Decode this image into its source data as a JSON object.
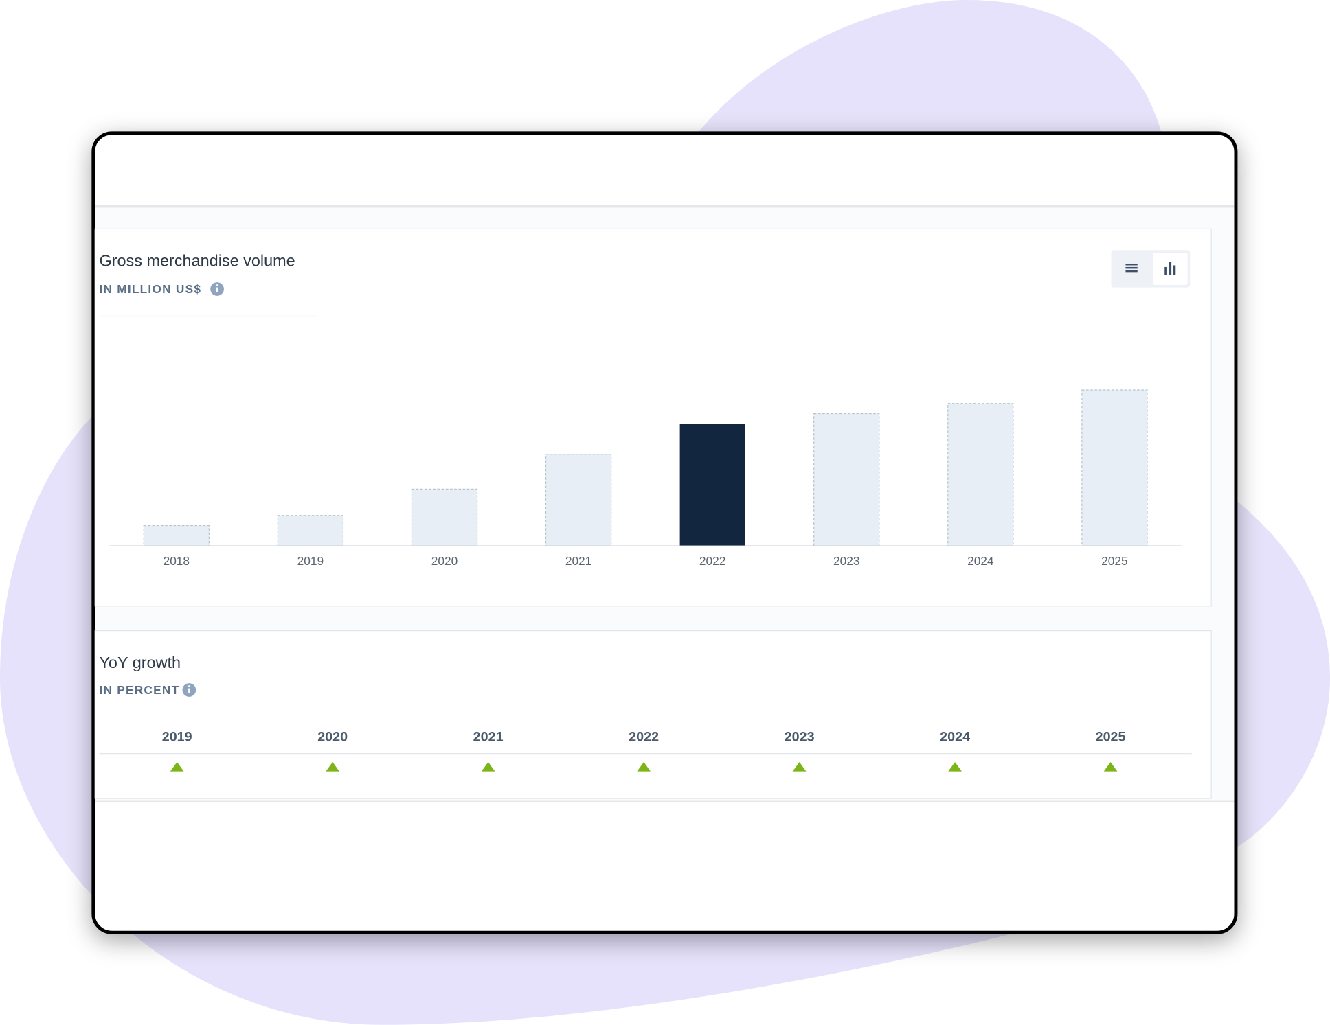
{
  "chart_data": [
    {
      "type": "bar",
      "title": "Gross merchandise volume",
      "subtitle": "IN MILLION US$",
      "categories": [
        "2018",
        "2019",
        "2020",
        "2021",
        "2022",
        "2023",
        "2024",
        "2025"
      ],
      "values": [
        24,
        36,
        67,
        108,
        144,
        156,
        168,
        184
      ],
      "color": "#e8eef5",
      "highlight_color": "#12263f",
      "highlight_index": 4,
      "ylim": [
        0,
        264
      ]
    },
    {
      "type": "growth-indicators",
      "title": "YoY growth",
      "subtitle": "IN PERCENT",
      "categories": [
        "2019",
        "2020",
        "2021",
        "2022",
        "2023",
        "2024",
        "2025"
      ],
      "color": "#7cb518"
    }
  ]
}
